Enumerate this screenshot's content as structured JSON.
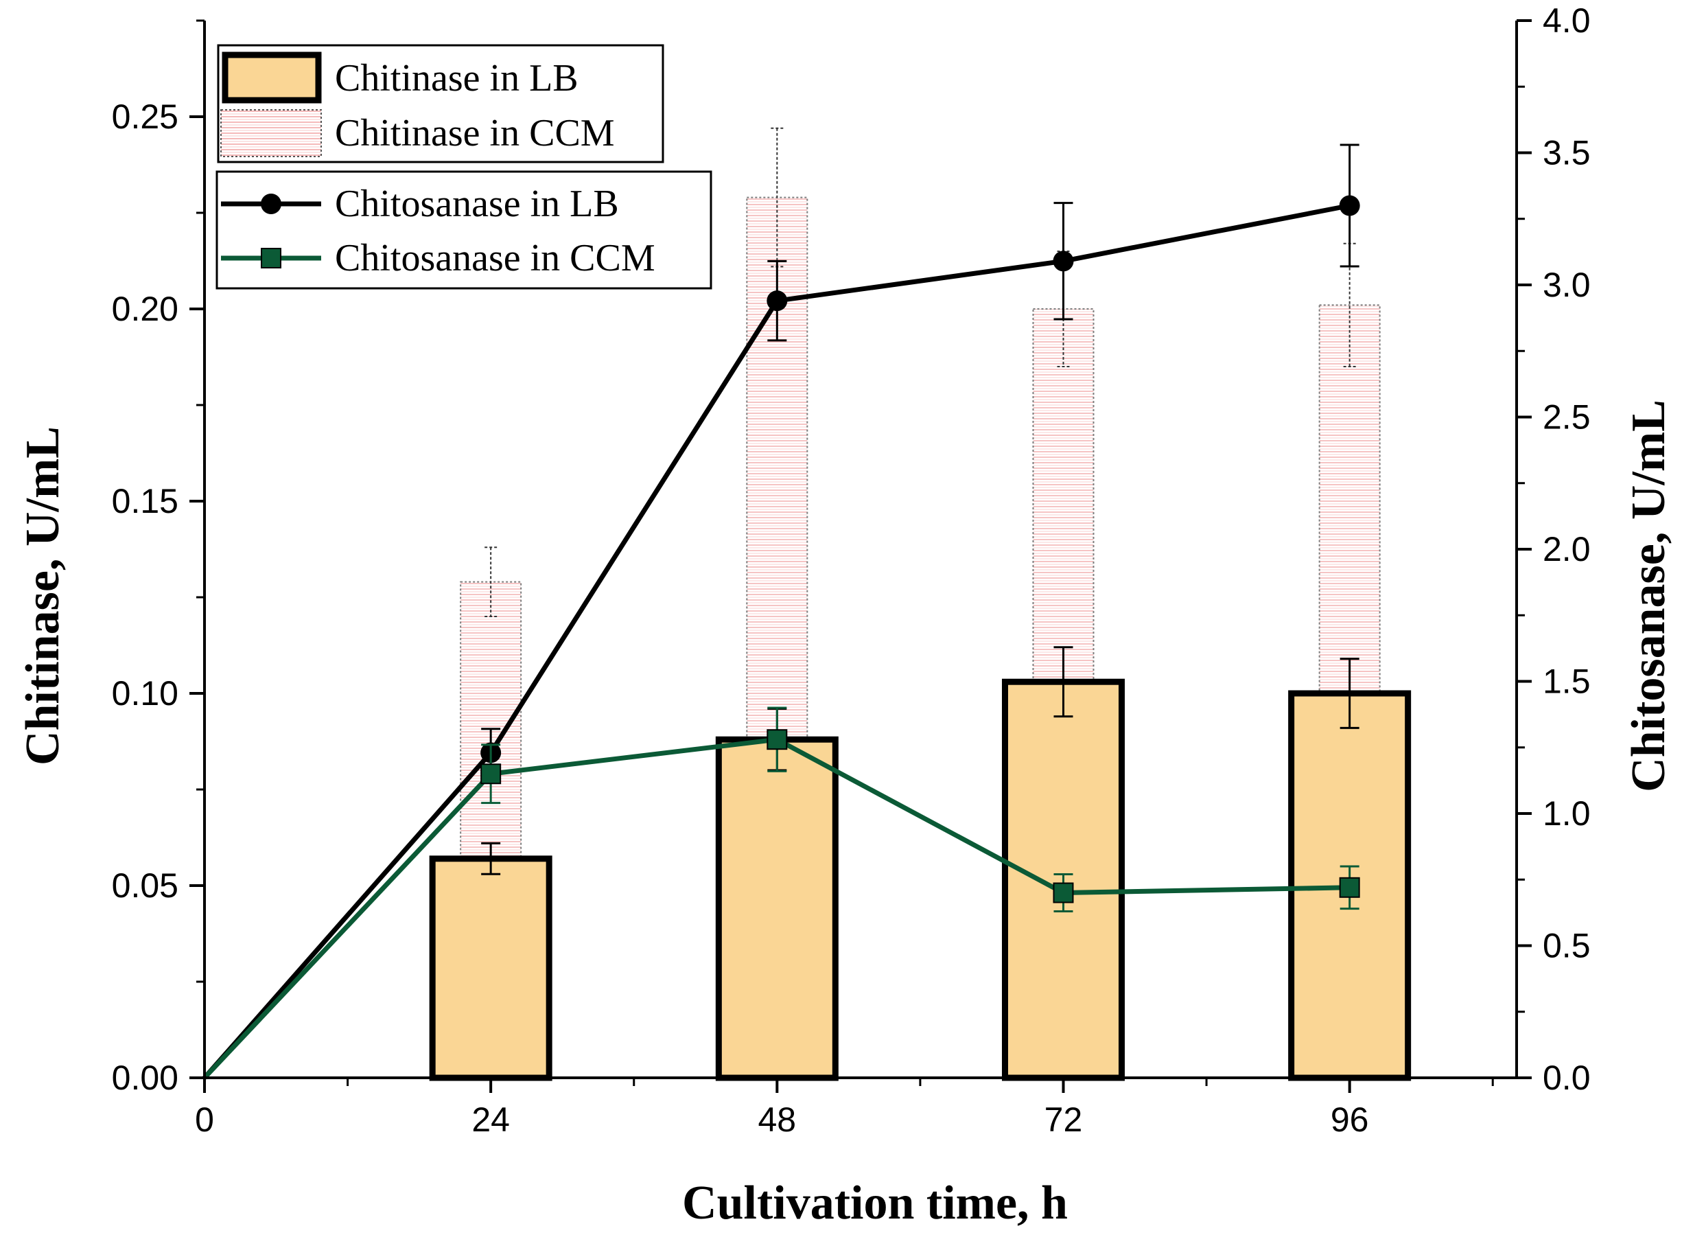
{
  "chart_data": {
    "type": "bar+line",
    "x_label": "Cultivation time, h",
    "y_left_label": "Chitinase, U/mL",
    "y_right_label": "Chitosanase, U/mL",
    "x_ticks": [
      0,
      24,
      48,
      72,
      96
    ],
    "x_range": [
      0,
      110
    ],
    "y_left_range": [
      0,
      0.275
    ],
    "y_left_ticks": [
      "0.00",
      "0.05",
      "0.10",
      "0.15",
      "0.20",
      "0.25"
    ],
    "y_right_range": [
      0,
      4.0
    ],
    "y_right_ticks": [
      "0.0",
      "0.5",
      "1.0",
      "1.5",
      "2.0",
      "2.5",
      "3.0",
      "3.5",
      "4.0"
    ],
    "bar_series": [
      {
        "name": "Chitinase in LB",
        "axis": "left",
        "color": "#FAD695",
        "edge": "#000000",
        "x": [
          24,
          48,
          72,
          96
        ],
        "values": [
          0.057,
          0.088,
          0.103,
          0.1
        ],
        "errors": [
          0.004,
          0.008,
          0.009,
          0.009
        ]
      },
      {
        "name": "Chitinase in CCM",
        "axis": "left",
        "color": "#F6B9B9",
        "edge": "#555555",
        "x": [
          24,
          48,
          72,
          96
        ],
        "values": [
          0.129,
          0.229,
          0.2,
          0.201
        ],
        "errors": [
          0.009,
          0.018,
          0.015,
          0.016
        ]
      }
    ],
    "line_series": [
      {
        "name": "Chitosanase in LB",
        "axis": "right",
        "color": "#000000",
        "marker": "circle",
        "x": [
          0,
          24,
          48,
          72,
          96
        ],
        "values": [
          0.0,
          1.23,
          2.94,
          3.09,
          3.3
        ],
        "errors": [
          0,
          0.09,
          0.15,
          0.22,
          0.23
        ]
      },
      {
        "name": "Chitosanase in CCM",
        "axis": "right",
        "color": "#0B5A36",
        "marker": "square",
        "x": [
          0,
          24,
          48,
          72,
          96
        ],
        "values": [
          0.0,
          1.15,
          1.28,
          0.7,
          0.72
        ],
        "errors": [
          0,
          0.11,
          0.12,
          0.07,
          0.08
        ]
      }
    ]
  }
}
